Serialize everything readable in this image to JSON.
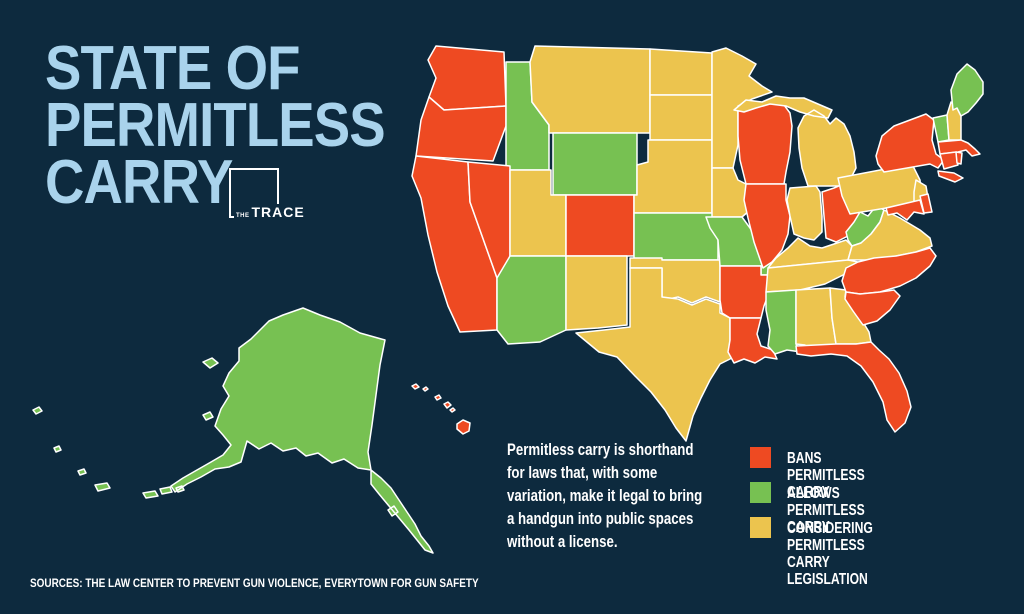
{
  "title": {
    "lines": [
      "STATE OF",
      "PERMITLESS",
      "CARRY"
    ]
  },
  "logo": {
    "the": "THE",
    "trace": "TRACE"
  },
  "description": "Permitless carry is shorthand\nfor laws that, with some\nvariation, make it legal to bring\na handgun into public spaces\nwithout a license.",
  "sources": "SOURCES: THE LAW CENTER TO PREVENT GUN VIOLENCE, EVERYTOWN FOR GUN SAFETY",
  "colors": {
    "background": "#0d2a3e",
    "title": "#a9d3ec",
    "text": "#ffffff",
    "state_border": "#ffffff",
    "ban": "#ee4a22",
    "allow": "#77c152",
    "considering": "#ecc44e"
  },
  "legend": [
    {
      "key": "ban",
      "label": "BANS PERMITLESS CARRY"
    },
    {
      "key": "allow",
      "label": "ALLOWS PERMITLESS CARRY"
    },
    {
      "key": "considering",
      "label": "CONSIDERING PERMITLESS\nCARRY LEGISLATION"
    }
  ],
  "map": {
    "title": "State of Permitless Carry — US states by permitless carry law status",
    "ban": [
      "WA",
      "OR",
      "CA",
      "NV",
      "CO",
      "WI",
      "IL",
      "OH",
      "NY",
      "MA",
      "CT",
      "RI",
      "DE",
      "MD",
      "NC",
      "SC",
      "FL",
      "AR",
      "LA",
      "HI"
    ],
    "allow": [
      "AK",
      "ID",
      "WY",
      "AZ",
      "KS",
      "MO",
      "MS",
      "WV",
      "VT",
      "ME"
    ],
    "considering": [
      "MT",
      "ND",
      "SD",
      "NE",
      "UT",
      "NM",
      "OK",
      "TX",
      "MN",
      "IA",
      "MI",
      "IN",
      "KY",
      "TN",
      "VA",
      "PA",
      "NJ",
      "NH",
      "GA",
      "AL"
    ]
  }
}
